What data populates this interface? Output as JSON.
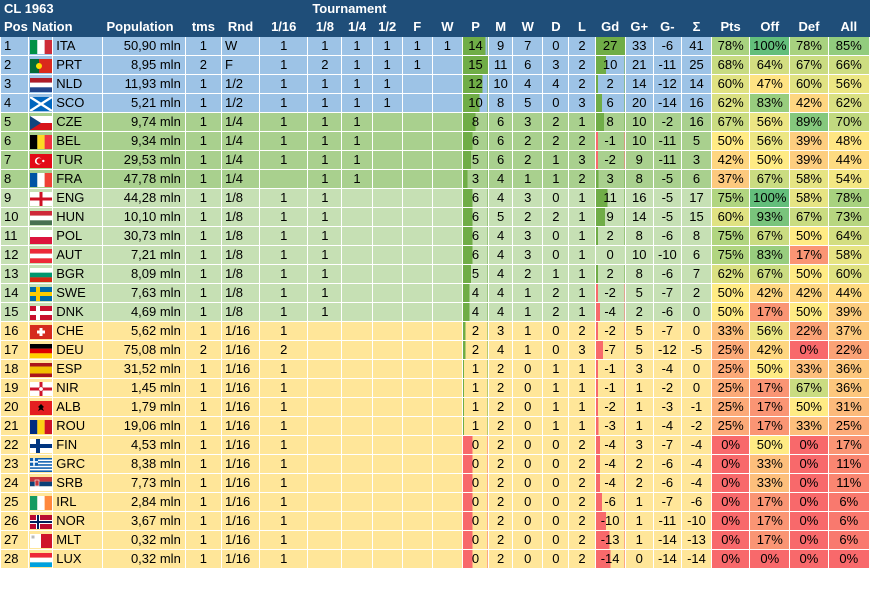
{
  "sheet_title": "CL 1963",
  "group_header": "Tournament",
  "columns": [
    "Pos",
    "Nation",
    "Population",
    "tms",
    "Rnd",
    "1/16",
    "1/8",
    "1/4",
    "1/2",
    "F",
    "W",
    "P",
    "M",
    "W",
    "D",
    "L",
    "Gd",
    "G+",
    "G-",
    "Σ",
    "Pts",
    "Off",
    "Def",
    "All"
  ],
  "rows": [
    {
      "pos": "1",
      "flag": "ita",
      "nation": "ITA",
      "pop": "50,90 mln",
      "tms": "1",
      "rnd": "W",
      "r16": "1",
      "r8": "1",
      "r4": "1",
      "r2": "1",
      "f": "1",
      "w": "1",
      "p": "14",
      "m": "9",
      "won": "7",
      "d": "0",
      "l": "2",
      "gd": "27",
      "gp": "33",
      "gm": "-6",
      "sum": "41",
      "pts": "78%",
      "off": "100%",
      "def": "78%",
      "all": "85%",
      "band": "blue"
    },
    {
      "pos": "2",
      "flag": "prt",
      "nation": "PRT",
      "pop": "8,95 mln",
      "tms": "2",
      "rnd": "F",
      "r16": "1",
      "r8": "2",
      "r4": "1",
      "r2": "1",
      "f": "1",
      "w": "",
      "p": "15",
      "m": "11",
      "won": "6",
      "d": "3",
      "l": "2",
      "gd": "10",
      "gp": "21",
      "gm": "-11",
      "sum": "25",
      "pts": "68%",
      "off": "64%",
      "def": "67%",
      "all": "66%",
      "band": "blue"
    },
    {
      "pos": "3",
      "flag": "nld",
      "nation": "NLD",
      "pop": "11,93 mln",
      "tms": "1",
      "rnd": "1/2",
      "r16": "1",
      "r8": "1",
      "r4": "1",
      "r2": "1",
      "f": "",
      "w": "",
      "p": "12",
      "m": "10",
      "won": "4",
      "d": "4",
      "l": "2",
      "gd": "2",
      "gp": "14",
      "gm": "-12",
      "sum": "14",
      "pts": "60%",
      "off": "47%",
      "def": "60%",
      "all": "56%",
      "band": "blue"
    },
    {
      "pos": "4",
      "flag": "sco",
      "nation": "SCO",
      "pop": "5,21 mln",
      "tms": "1",
      "rnd": "1/2",
      "r16": "1",
      "r8": "1",
      "r4": "1",
      "r2": "1",
      "f": "",
      "w": "",
      "p": "10",
      "m": "8",
      "won": "5",
      "d": "0",
      "l": "3",
      "gd": "6",
      "gp": "20",
      "gm": "-14",
      "sum": "16",
      "pts": "62%",
      "off": "83%",
      "def": "42%",
      "all": "62%",
      "band": "blue"
    },
    {
      "pos": "5",
      "flag": "cze",
      "nation": "CZE",
      "pop": "9,74 mln",
      "tms": "1",
      "rnd": "1/4",
      "r16": "1",
      "r8": "1",
      "r4": "1",
      "r2": "",
      "f": "",
      "w": "",
      "p": "8",
      "m": "6",
      "won": "3",
      "d": "2",
      "l": "1",
      "gd": "8",
      "gp": "10",
      "gm": "-2",
      "sum": "16",
      "pts": "67%",
      "off": "56%",
      "def": "89%",
      "all": "70%",
      "band": "green1"
    },
    {
      "pos": "6",
      "flag": "bel",
      "nation": "BEL",
      "pop": "9,34 mln",
      "tms": "1",
      "rnd": "1/4",
      "r16": "1",
      "r8": "1",
      "r4": "1",
      "r2": "",
      "f": "",
      "w": "",
      "p": "6",
      "m": "6",
      "won": "2",
      "d": "2",
      "l": "2",
      "gd": "-1",
      "gp": "10",
      "gm": "-11",
      "sum": "5",
      "pts": "50%",
      "off": "56%",
      "def": "39%",
      "all": "48%",
      "band": "green1"
    },
    {
      "pos": "7",
      "flag": "tur",
      "nation": "TUR",
      "pop": "29,53 mln",
      "tms": "1",
      "rnd": "1/4",
      "r16": "1",
      "r8": "1",
      "r4": "1",
      "r2": "",
      "f": "",
      "w": "",
      "p": "5",
      "m": "6",
      "won": "2",
      "d": "1",
      "l": "3",
      "gd": "-2",
      "gp": "9",
      "gm": "-11",
      "sum": "3",
      "pts": "42%",
      "off": "50%",
      "def": "39%",
      "all": "44%",
      "band": "green1"
    },
    {
      "pos": "8",
      "flag": "fra",
      "nation": "FRA",
      "pop": "47,78 mln",
      "tms": "1",
      "rnd": "1/4",
      "r16": "",
      "r8": "1",
      "r4": "1",
      "r2": "",
      "f": "",
      "w": "",
      "p": "3",
      "m": "4",
      "won": "1",
      "d": "1",
      "l": "2",
      "gd": "3",
      "gp": "8",
      "gm": "-5",
      "sum": "6",
      "pts": "37%",
      "off": "67%",
      "def": "58%",
      "all": "54%",
      "band": "green1"
    },
    {
      "pos": "9",
      "flag": "eng",
      "nation": "ENG",
      "pop": "44,28 mln",
      "tms": "1",
      "rnd": "1/8",
      "r16": "1",
      "r8": "1",
      "r4": "",
      "r2": "",
      "f": "",
      "w": "",
      "p": "6",
      "m": "4",
      "won": "3",
      "d": "0",
      "l": "1",
      "gd": "11",
      "gp": "16",
      "gm": "-5",
      "sum": "17",
      "pts": "75%",
      "off": "100%",
      "def": "58%",
      "all": "78%",
      "band": "green2"
    },
    {
      "pos": "10",
      "flag": "hun",
      "nation": "HUN",
      "pop": "10,10 mln",
      "tms": "1",
      "rnd": "1/8",
      "r16": "1",
      "r8": "1",
      "r4": "",
      "r2": "",
      "f": "",
      "w": "",
      "p": "6",
      "m": "5",
      "won": "2",
      "d": "2",
      "l": "1",
      "gd": "9",
      "gp": "14",
      "gm": "-5",
      "sum": "15",
      "pts": "60%",
      "off": "93%",
      "def": "67%",
      "all": "73%",
      "band": "green2"
    },
    {
      "pos": "11",
      "flag": "pol",
      "nation": "POL",
      "pop": "30,73 mln",
      "tms": "1",
      "rnd": "1/8",
      "r16": "1",
      "r8": "1",
      "r4": "",
      "r2": "",
      "f": "",
      "w": "",
      "p": "6",
      "m": "4",
      "won": "3",
      "d": "0",
      "l": "1",
      "gd": "2",
      "gp": "8",
      "gm": "-6",
      "sum": "8",
      "pts": "75%",
      "off": "67%",
      "def": "50%",
      "all": "64%",
      "band": "green2"
    },
    {
      "pos": "12",
      "flag": "aut",
      "nation": "AUT",
      "pop": "7,21 mln",
      "tms": "1",
      "rnd": "1/8",
      "r16": "1",
      "r8": "1",
      "r4": "",
      "r2": "",
      "f": "",
      "w": "",
      "p": "6",
      "m": "4",
      "won": "3",
      "d": "0",
      "l": "1",
      "gd": "0",
      "gp": "10",
      "gm": "-10",
      "sum": "6",
      "pts": "75%",
      "off": "83%",
      "def": "17%",
      "all": "58%",
      "band": "green2"
    },
    {
      "pos": "13",
      "flag": "bgr",
      "nation": "BGR",
      "pop": "8,09 mln",
      "tms": "1",
      "rnd": "1/8",
      "r16": "1",
      "r8": "1",
      "r4": "",
      "r2": "",
      "f": "",
      "w": "",
      "p": "5",
      "m": "4",
      "won": "2",
      "d": "1",
      "l": "1",
      "gd": "2",
      "gp": "8",
      "gm": "-6",
      "sum": "7",
      "pts": "62%",
      "off": "67%",
      "def": "50%",
      "all": "60%",
      "band": "green2"
    },
    {
      "pos": "14",
      "flag": "swe",
      "nation": "SWE",
      "pop": "7,63 mln",
      "tms": "1",
      "rnd": "1/8",
      "r16": "1",
      "r8": "1",
      "r4": "",
      "r2": "",
      "f": "",
      "w": "",
      "p": "4",
      "m": "4",
      "won": "1",
      "d": "2",
      "l": "1",
      "gd": "-2",
      "gp": "5",
      "gm": "-7",
      "sum": "2",
      "pts": "50%",
      "off": "42%",
      "def": "42%",
      "all": "44%",
      "band": "green2"
    },
    {
      "pos": "15",
      "flag": "dnk",
      "nation": "DNK",
      "pop": "4,69 mln",
      "tms": "1",
      "rnd": "1/8",
      "r16": "1",
      "r8": "1",
      "r4": "",
      "r2": "",
      "f": "",
      "w": "",
      "p": "4",
      "m": "4",
      "won": "1",
      "d": "2",
      "l": "1",
      "gd": "-4",
      "gp": "2",
      "gm": "-6",
      "sum": "0",
      "pts": "50%",
      "off": "17%",
      "def": "50%",
      "all": "39%",
      "band": "green2"
    },
    {
      "pos": "16",
      "flag": "che",
      "nation": "CHE",
      "pop": "5,62 mln",
      "tms": "1",
      "rnd": "1/16",
      "r16": "1",
      "r8": "",
      "r4": "",
      "r2": "",
      "f": "",
      "w": "",
      "p": "2",
      "m": "3",
      "won": "1",
      "d": "0",
      "l": "2",
      "gd": "-2",
      "gp": "5",
      "gm": "-7",
      "sum": "0",
      "pts": "33%",
      "off": "56%",
      "def": "22%",
      "all": "37%",
      "band": "yellow"
    },
    {
      "pos": "17",
      "flag": "deu",
      "nation": "DEU",
      "pop": "75,08 mln",
      "tms": "2",
      "rnd": "1/16",
      "r16": "2",
      "r8": "",
      "r4": "",
      "r2": "",
      "f": "",
      "w": "",
      "p": "2",
      "m": "4",
      "won": "1",
      "d": "0",
      "l": "3",
      "gd": "-7",
      "gp": "5",
      "gm": "-12",
      "sum": "-5",
      "pts": "25%",
      "off": "42%",
      "def": "0%",
      "all": "22%",
      "band": "yellow"
    },
    {
      "pos": "18",
      "flag": "esp",
      "nation": "ESP",
      "pop": "31,52 mln",
      "tms": "1",
      "rnd": "1/16",
      "r16": "1",
      "r8": "",
      "r4": "",
      "r2": "",
      "f": "",
      "w": "",
      "p": "1",
      "m": "2",
      "won": "0",
      "d": "1",
      "l": "1",
      "gd": "-1",
      "gp": "3",
      "gm": "-4",
      "sum": "0",
      "pts": "25%",
      "off": "50%",
      "def": "33%",
      "all": "36%",
      "band": "yellow"
    },
    {
      "pos": "19",
      "flag": "nir",
      "nation": "NIR",
      "pop": "1,45 mln",
      "tms": "1",
      "rnd": "1/16",
      "r16": "1",
      "r8": "",
      "r4": "",
      "r2": "",
      "f": "",
      "w": "",
      "p": "1",
      "m": "2",
      "won": "0",
      "d": "1",
      "l": "1",
      "gd": "-1",
      "gp": "1",
      "gm": "-2",
      "sum": "0",
      "pts": "25%",
      "off": "17%",
      "def": "67%",
      "all": "36%",
      "band": "yellow"
    },
    {
      "pos": "20",
      "flag": "alb",
      "nation": "ALB",
      "pop": "1,79 mln",
      "tms": "1",
      "rnd": "1/16",
      "r16": "1",
      "r8": "",
      "r4": "",
      "r2": "",
      "f": "",
      "w": "",
      "p": "1",
      "m": "2",
      "won": "0",
      "d": "1",
      "l": "1",
      "gd": "-2",
      "gp": "1",
      "gm": "-3",
      "sum": "-1",
      "pts": "25%",
      "off": "17%",
      "def": "50%",
      "all": "31%",
      "band": "yellow"
    },
    {
      "pos": "21",
      "flag": "rou",
      "nation": "ROU",
      "pop": "19,06 mln",
      "tms": "1",
      "rnd": "1/16",
      "r16": "1",
      "r8": "",
      "r4": "",
      "r2": "",
      "f": "",
      "w": "",
      "p": "1",
      "m": "2",
      "won": "0",
      "d": "1",
      "l": "1",
      "gd": "-3",
      "gp": "1",
      "gm": "-4",
      "sum": "-2",
      "pts": "25%",
      "off": "17%",
      "def": "33%",
      "all": "25%",
      "band": "yellow"
    },
    {
      "pos": "22",
      "flag": "fin",
      "nation": "FIN",
      "pop": "4,53 mln",
      "tms": "1",
      "rnd": "1/16",
      "r16": "1",
      "r8": "",
      "r4": "",
      "r2": "",
      "f": "",
      "w": "",
      "p": "0",
      "m": "2",
      "won": "0",
      "d": "0",
      "l": "2",
      "gd": "-4",
      "gp": "3",
      "gm": "-7",
      "sum": "-4",
      "pts": "0%",
      "off": "50%",
      "def": "0%",
      "all": "17%",
      "band": "yellow"
    },
    {
      "pos": "23",
      "flag": "grc",
      "nation": "GRC",
      "pop": "8,38 mln",
      "tms": "1",
      "rnd": "1/16",
      "r16": "1",
      "r8": "",
      "r4": "",
      "r2": "",
      "f": "",
      "w": "",
      "p": "0",
      "m": "2",
      "won": "0",
      "d": "0",
      "l": "2",
      "gd": "-4",
      "gp": "2",
      "gm": "-6",
      "sum": "-4",
      "pts": "0%",
      "off": "33%",
      "def": "0%",
      "all": "11%",
      "band": "yellow"
    },
    {
      "pos": "24",
      "flag": "srb",
      "nation": "SRB",
      "pop": "7,73 mln",
      "tms": "1",
      "rnd": "1/16",
      "r16": "1",
      "r8": "",
      "r4": "",
      "r2": "",
      "f": "",
      "w": "",
      "p": "0",
      "m": "2",
      "won": "0",
      "d": "0",
      "l": "2",
      "gd": "-4",
      "gp": "2",
      "gm": "-6",
      "sum": "-4",
      "pts": "0%",
      "off": "33%",
      "def": "0%",
      "all": "11%",
      "band": "yellow"
    },
    {
      "pos": "25",
      "flag": "irl",
      "nation": "IRL",
      "pop": "2,84 mln",
      "tms": "1",
      "rnd": "1/16",
      "r16": "1",
      "r8": "",
      "r4": "",
      "r2": "",
      "f": "",
      "w": "",
      "p": "0",
      "m": "2",
      "won": "0",
      "d": "0",
      "l": "2",
      "gd": "-6",
      "gp": "1",
      "gm": "-7",
      "sum": "-6",
      "pts": "0%",
      "off": "17%",
      "def": "0%",
      "all": "6%",
      "band": "yellow"
    },
    {
      "pos": "26",
      "flag": "nor",
      "nation": "NOR",
      "pop": "3,67 mln",
      "tms": "1",
      "rnd": "1/16",
      "r16": "1",
      "r8": "",
      "r4": "",
      "r2": "",
      "f": "",
      "w": "",
      "p": "0",
      "m": "2",
      "won": "0",
      "d": "0",
      "l": "2",
      "gd": "-10",
      "gp": "1",
      "gm": "-11",
      "sum": "-10",
      "pts": "0%",
      "off": "17%",
      "def": "0%",
      "all": "6%",
      "band": "yellow"
    },
    {
      "pos": "27",
      "flag": "mlt",
      "nation": "MLT",
      "pop": "0,32 mln",
      "tms": "1",
      "rnd": "1/16",
      "r16": "1",
      "r8": "",
      "r4": "",
      "r2": "",
      "f": "",
      "w": "",
      "p": "0",
      "m": "2",
      "won": "0",
      "d": "0",
      "l": "2",
      "gd": "-13",
      "gp": "1",
      "gm": "-14",
      "sum": "-13",
      "pts": "0%",
      "off": "17%",
      "def": "0%",
      "all": "6%",
      "band": "yellow"
    },
    {
      "pos": "28",
      "flag": "lux",
      "nation": "LUX",
      "pop": "0,32 mln",
      "tms": "1",
      "rnd": "1/16",
      "r16": "1",
      "r8": "",
      "r4": "",
      "r2": "",
      "f": "",
      "w": "",
      "p": "0",
      "m": "2",
      "won": "0",
      "d": "0",
      "l": "2",
      "gd": "-14",
      "gp": "0",
      "gm": "-14",
      "sum": "-14",
      "pts": "0%",
      "off": "0%",
      "def": "0%",
      "all": "0%",
      "band": "yellow"
    }
  ],
  "colors": {
    "header_bg": "#1f4e79",
    "band_blue": "#9dc3e6",
    "band_green1": "#a9d08e",
    "band_green2": "#c6e0b4",
    "band_yellow": "#ffe699",
    "scale_red": "#f8696b",
    "scale_yellow": "#ffeb84",
    "scale_green": "#63be7b",
    "bar_green": "#70ad47",
    "bar_red": "#f8696b"
  }
}
